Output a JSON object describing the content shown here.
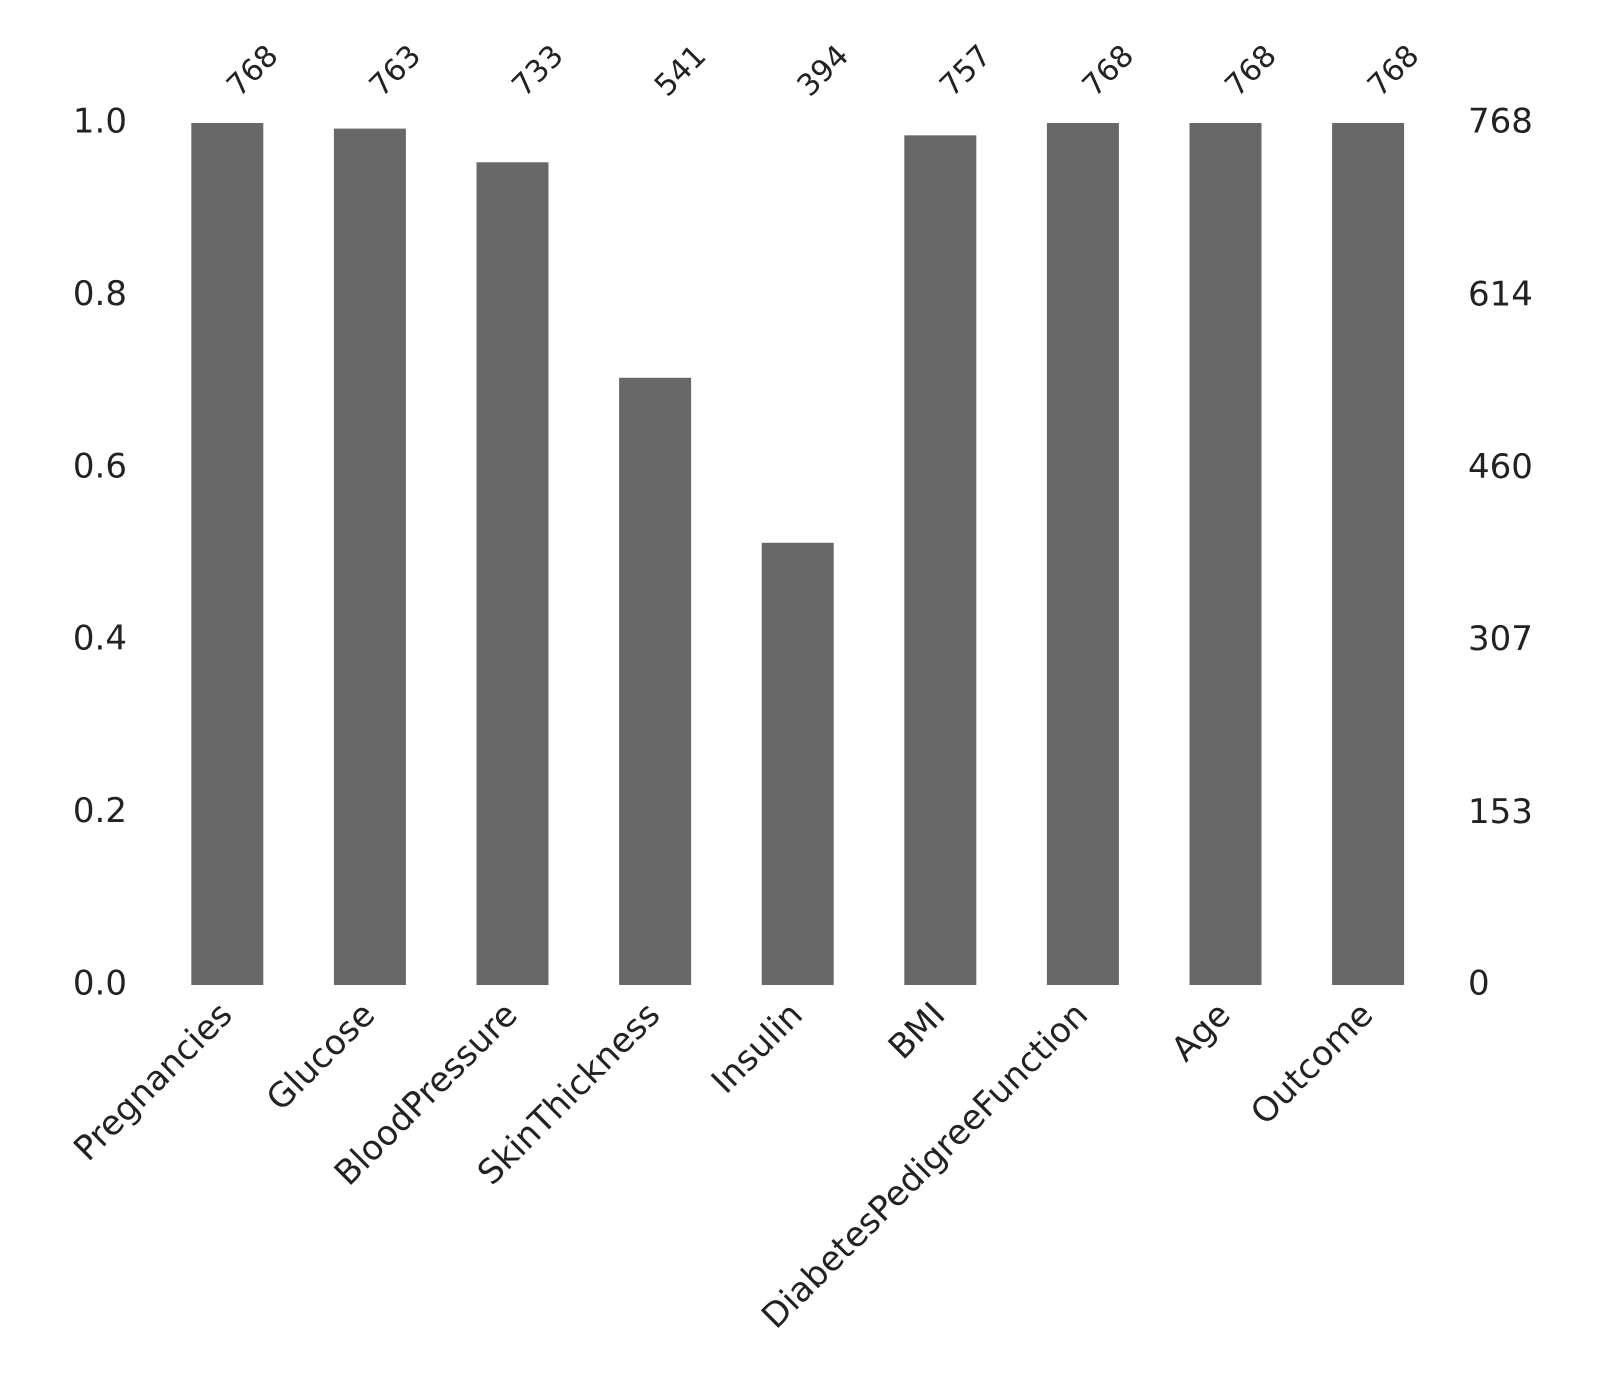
{
  "chart_data": {
    "type": "bar",
    "categories": [
      "Pregnancies",
      "Glucose",
      "BloodPressure",
      "SkinThickness",
      "Insulin",
      "BMI",
      "DiabetesPedigreeFunction",
      "Age",
      "Outcome"
    ],
    "series": [
      {
        "color": "#686868",
        "axis": "y2",
        "values": [
          768,
          763,
          733,
          541,
          394,
          757,
          768,
          768,
          768
        ]
      }
    ],
    "ylim": [
      0,
      1
    ],
    "yticks": [
      {
        "value": 0,
        "label": "0.0"
      },
      0.2,
      0.4,
      0.6,
      0.8,
      {
        "value": 1,
        "label": "1.0"
      }
    ],
    "y2lim": [
      0,
      768
    ],
    "y2ticks": [
      0,
      153,
      307,
      460,
      614,
      768
    ],
    "grid": false
  }
}
